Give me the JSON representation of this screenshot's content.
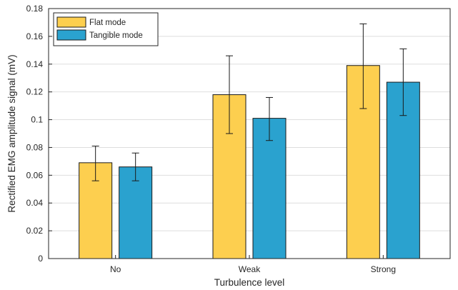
{
  "chart_data": {
    "type": "bar",
    "title": "",
    "xlabel": "Turbulence level",
    "ylabel": "Rectified EMG amplitude signal  (mV)",
    "categories": [
      "No",
      "Weak",
      "Strong"
    ],
    "ylim": [
      0,
      0.18
    ],
    "yticks": [
      "0",
      "0.02",
      "0.04",
      "0.06",
      "0.08",
      "0.1",
      "0.12",
      "0.14",
      "0.16",
      "0.18"
    ],
    "grid": true,
    "legend_position": "top-left",
    "series": [
      {
        "name": "Flat mode",
        "color": "#FDCF4F",
        "values": [
          0.069,
          0.118,
          0.139
        ],
        "error_low": [
          0.056,
          0.09,
          0.108
        ],
        "error_high": [
          0.081,
          0.146,
          0.169
        ]
      },
      {
        "name": "Tangible mode",
        "color": "#2AA2CF",
        "values": [
          0.066,
          0.101,
          0.127
        ],
        "error_low": [
          0.056,
          0.085,
          0.103
        ],
        "error_high": [
          0.076,
          0.116,
          0.151
        ]
      }
    ]
  }
}
